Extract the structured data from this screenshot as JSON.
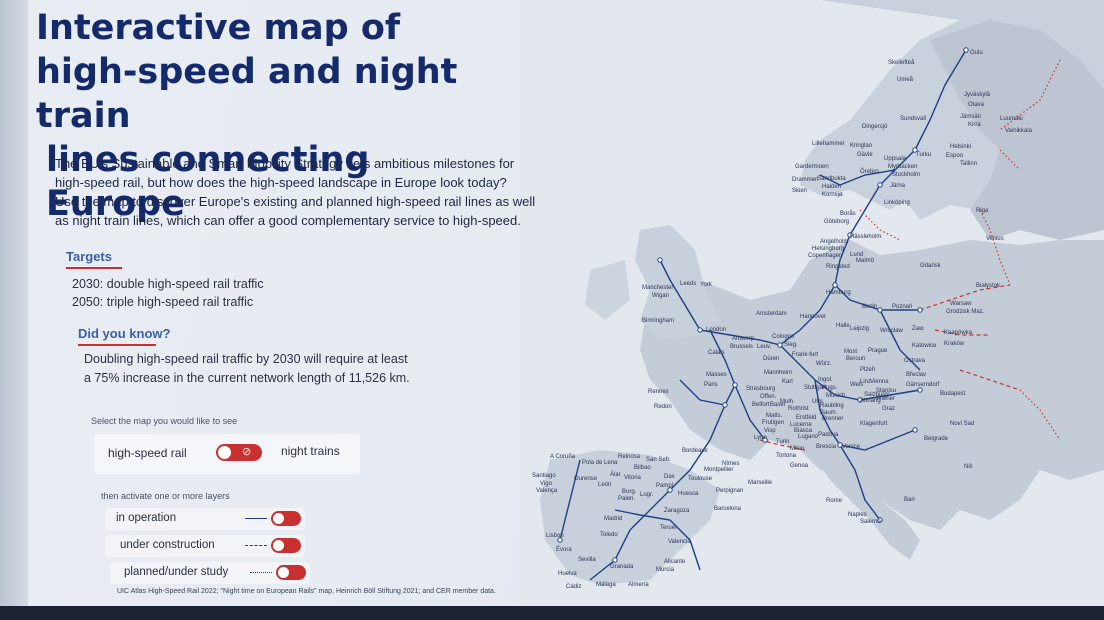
{
  "header": {
    "title_line1": "Interactive map of",
    "title_line2": "high-speed and night train",
    "title_line3": "lines connecting Europe"
  },
  "intro": {
    "line1": "The EU's Sustainable and Smart Mobility Strategy sets ambitious milestones for",
    "line2": "high-speed rail, but how does the high-speed landscape in Europe look today?",
    "line3": "Use the map to discover Europe's existing and planned high-speed rail lines as well",
    "line4": "as night train lines, which can offer a good complementary service to high-speed."
  },
  "targets": {
    "heading": "Targets",
    "line_2030": "2030: double high-speed rail traffic",
    "line_2050": "2050: triple high-speed rail traffic"
  },
  "did_you_know": {
    "heading": "Did you know?",
    "line1": "Doubling high-speed rail traffic by 2030 will require at least",
    "line2": "a 75% increase in the current network length of 11,526 km."
  },
  "map_mode": {
    "prompt": "Select the map you would like to see",
    "option_high_speed": "high-speed rail",
    "option_night": "night trains",
    "selected": "high-speed rail"
  },
  "layers": {
    "prompt": "then activate one or more layers",
    "items": [
      {
        "label": "in operation",
        "line_style": "solid",
        "enabled": true
      },
      {
        "label": "under construction",
        "line_style": "dashed",
        "enabled": true
      },
      {
        "label": "planned/under study",
        "line_style": "dotted",
        "enabled": true
      }
    ]
  },
  "source_note": "UIC Atlas High-Speed Rail 2022; \"Night time on European Rails\" map, Heinrich Böll Stiftung 2021; and CER member data.",
  "colors": {
    "title": "#142a6b",
    "accent_red": "#c8312f",
    "heading_blue": "#3a5fa8",
    "rail_line": "#1f3f86",
    "land": "#c6ced9",
    "land_highlight": "#d5dbe4"
  },
  "map": {
    "cities": [
      "Skellefteå",
      "Oulu",
      "Umeå",
      "Jyväskylä",
      "Otava",
      "Sundsvall",
      "Jämsän",
      "Kirra",
      "Luumäki",
      "Vainikkala",
      "Dingersjö",
      "Lillehammer",
      "Kringlan",
      "Gävle",
      "Uppsala",
      "Turku",
      "Helsinki",
      "Espoo",
      "Tallinn",
      "Gardermoen",
      "Myrbacken",
      "Stockholm",
      "Örebro",
      "Drammen",
      "Sandbukta",
      "Halden",
      "Skien",
      "Kornsjø",
      "Järna",
      "Linköping",
      "Göteborg",
      "Borås",
      "Riga",
      "Angelholm",
      "Hässleholm",
      "Helsingborg",
      "Copenhagen",
      "Lund",
      "Malmö",
      "Ringsted",
      "Vilnius",
      "Gdańsk",
      "Białystok",
      "Hamburg",
      "Berlin",
      "Poznań",
      "Warsaw",
      "Grodzisk Maz.",
      "Manchester",
      "Leeds",
      "York",
      "Wigan",
      "Birmingham",
      "London",
      "Amsterdam",
      "Hannover",
      "Halle",
      "Leipzig",
      "Wrocław",
      "Zaw.",
      "Kraków",
      "Katowice",
      "Knapówka",
      "Antwerp",
      "Brussels",
      "Leuv.",
      "Cologne",
      "Sieg.",
      "Calais",
      "Düren",
      "Frank-furt",
      "Most",
      "Prague",
      "Beroun",
      "Ostrava",
      "Mannheim",
      "Würz.",
      "Plzeň",
      "Břeclav",
      "Masses",
      "Karl",
      "Ingol.",
      "Paris",
      "Stuttgart",
      "Augs.",
      "Wels",
      "Linz",
      "Vienna",
      "Gänserndorf",
      "Strasbourg",
      "Offen.",
      "Basel",
      "Munich",
      "Ulm",
      "Salzburg",
      "Stanjsu",
      "Rennes",
      "Belfort",
      "Mulh.",
      "Rothrist",
      "Raubling",
      "Baum.",
      "Attnang",
      "Wiener",
      "Budapest",
      "Redon",
      "Matts.",
      "Frutigen",
      "Erstfeld",
      "Brenner",
      "Graz",
      "Visp",
      "Lucerne",
      "Biasca",
      "Lugano",
      "Padova",
      "Klagenfurt",
      "Novi Sad",
      "Lyon",
      "Turin",
      "Milan",
      "Brescia",
      "Venice",
      "Belgrade",
      "Tortona",
      "Genoa",
      "Bordeaux",
      "Niš",
      "Nîmes",
      "Montpellier",
      "A Coruña",
      "Pola de Lena",
      "Reinosa",
      "San Seb.",
      "Bilbao",
      "Santiago",
      "Vigo",
      "Valença",
      "Ourense",
      "Álar",
      "León",
      "Vitoria",
      "Pampl.",
      "Dax",
      "Toulouse",
      "Marseille",
      "Perpignan",
      "Burg.",
      "Logr.",
      "Palen.",
      "Huesca",
      "Zaragoza",
      "Rome",
      "Bari",
      "Barcelona",
      "Naples",
      "Salerno",
      "Madrid",
      "Toledo",
      "Teruel",
      "Lisbon",
      "Évora",
      "Valencia",
      "Sevilla",
      "Huelva",
      "Granada",
      "Alicante",
      "Murcia",
      "Cádiz",
      "Málaga",
      "Almería"
    ]
  }
}
